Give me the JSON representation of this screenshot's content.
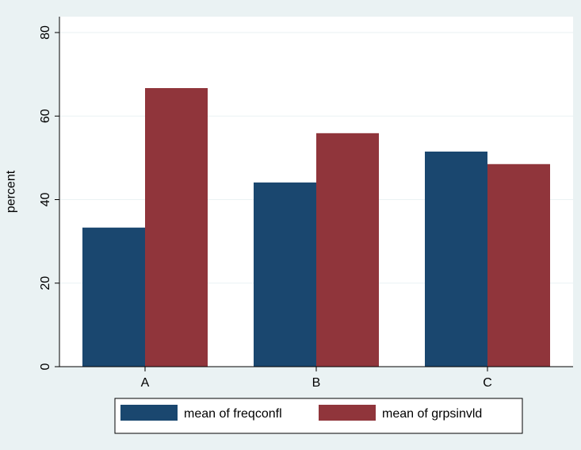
{
  "chart_data": {
    "type": "bar",
    "categories": [
      "A",
      "B",
      "C"
    ],
    "series": [
      {
        "name": "mean of freqconfl",
        "values": [
          33.3,
          44.1,
          51.5
        ],
        "color": "#1a476f"
      },
      {
        "name": "mean of grpsinvld",
        "values": [
          66.7,
          55.9,
          48.5
        ],
        "color": "#90353b"
      }
    ],
    "ylabel": "percent",
    "ylim": [
      0,
      80
    ],
    "yticks": [
      0,
      20,
      40,
      60,
      80
    ],
    "grid": true,
    "legend_position": "bottom",
    "plot_background": "#ffffff",
    "page_background": "#eaf2f3",
    "grid_color": "#eaf2f3"
  }
}
